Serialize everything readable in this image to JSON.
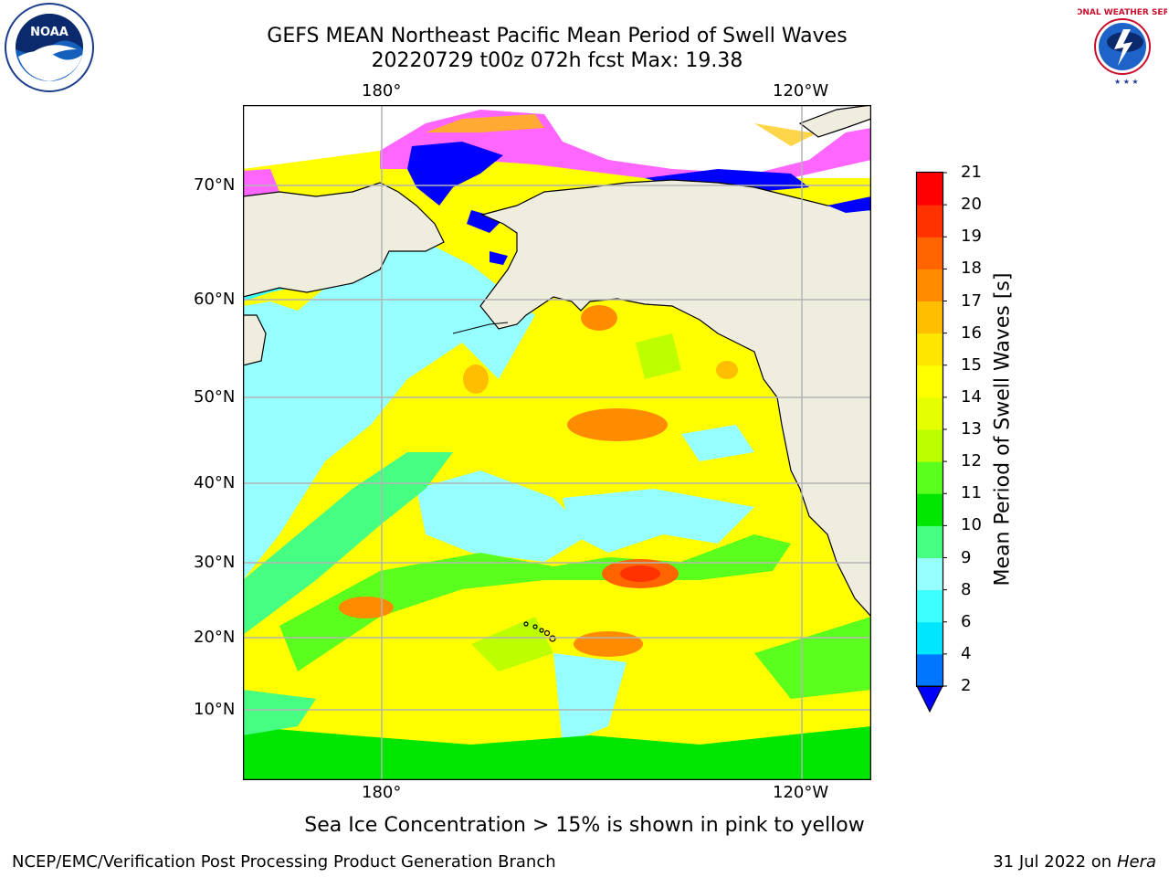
{
  "header": {
    "title_line1": "GEFS MEAN Northeast Pacific Mean Period of Swell Waves",
    "title_line2": "20220729 t00z 072h fcst   Max: 19.38"
  },
  "logos": {
    "left": {
      "icon": "noaa-logo",
      "text": "NOAA"
    },
    "right": {
      "icon": "national-weather-service-logo",
      "text": "NATIONAL WEATHER SERVICE"
    }
  },
  "map": {
    "projection": "polar-stereographic",
    "region": "Northeast Pacific",
    "top_lon_labels": [
      "180°",
      "120°W"
    ],
    "bottom_lon_labels": [
      "180°",
      "120°W"
    ],
    "lat_labels": [
      "70°N",
      "60°N",
      "50°N",
      "40°N",
      "30°N",
      "20°N",
      "10°N"
    ],
    "gridlines": true,
    "colors": {
      "land": "#efedde",
      "coast": "#000000",
      "grid": "#b4b4b4",
      "ice_pink": "#ff66ff",
      "ice_orange": "#ffaa33",
      "ice_yellow": "#ffd54a"
    }
  },
  "colorbar": {
    "label": "Mean Period of Swell Waves [s]",
    "ticks": [
      "21",
      "20",
      "19",
      "18",
      "17",
      "16",
      "15",
      "14",
      "13",
      "12",
      "11",
      "10",
      "9",
      "8",
      "6",
      "4",
      "2"
    ],
    "levels": [
      2,
      4,
      6,
      8,
      9,
      10,
      11,
      12,
      13,
      14,
      15,
      16,
      17,
      18,
      19,
      20,
      21
    ],
    "colors": [
      "#0076ff",
      "#00e6ff",
      "#3cffff",
      "#96ffff",
      "#46ff82",
      "#00e600",
      "#5aff1e",
      "#beff00",
      "#e6ff00",
      "#ffff00",
      "#ffe600",
      "#ffbe00",
      "#ff8c00",
      "#ff6400",
      "#ff3200",
      "#ff0000"
    ],
    "under_color": "#0000ff",
    "extend": "min"
  },
  "footer": {
    "note": "Sea Ice Concentration > 15% is shown in pink to yellow",
    "credit_left": "NCEP/EMC/Verification Post Processing Product Generation Branch",
    "credit_right_date": "31 Jul 2022 on ",
    "credit_right_machine": "Hera"
  }
}
